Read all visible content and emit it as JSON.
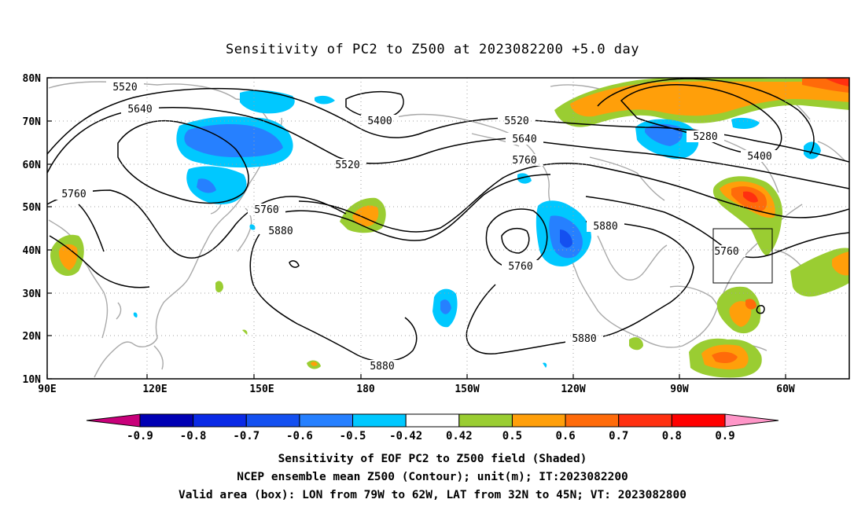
{
  "title": "Sensitivity of PC2 to Z500 at 2023082200 +5.0 day",
  "lat_labels": [
    "80N",
    "70N",
    "60N",
    "50N",
    "40N",
    "30N",
    "20N",
    "10N"
  ],
  "lon_labels": [
    "90E",
    "120E",
    "150E",
    "180",
    "150W",
    "120W",
    "90W",
    "60W"
  ],
  "contour_labels": {
    "c5520a": "5520",
    "c5640a": "5640",
    "c5400a": "5400",
    "c5520b": "5520",
    "c5520c": "5520",
    "c5640b": "5640",
    "c5760a": "5760",
    "c5280": "5280",
    "c5400b": "5400",
    "c5760b": "5760",
    "c5760c": "5760",
    "c5880a": "5880",
    "c5760d": "5760",
    "c5880b": "5880",
    "c5760e": "5760",
    "c5880c": "5880",
    "c5880d": "5880"
  },
  "colorbar": {
    "labels": [
      "-0.9",
      "-0.8",
      "-0.7",
      "-0.6",
      "-0.5",
      "-0.42",
      "0.42",
      "0.5",
      "0.6",
      "0.7",
      "0.8",
      "0.9"
    ],
    "colors": [
      "#0000b4",
      "#0a2ae6",
      "#1450f0",
      "#2680ff",
      "#00c8ff",
      "#ffffff",
      "#9acd32",
      "#ff9f0a",
      "#ff6b0a",
      "#ff3010",
      "#ff0000"
    ],
    "low_extend_color": "#c8007a",
    "high_extend_color": "#ff96c8"
  },
  "footer": {
    "line1": "Sensitivity of EOF PC2 to Z500 field (Shaded)",
    "line2": "NCEP ensemble mean Z500 (Contour); unit(m); IT:2023082200",
    "line3": "Valid area (box): LON from 79W to 62W, LAT from 32N to 45N; VT: 2023082800"
  }
}
